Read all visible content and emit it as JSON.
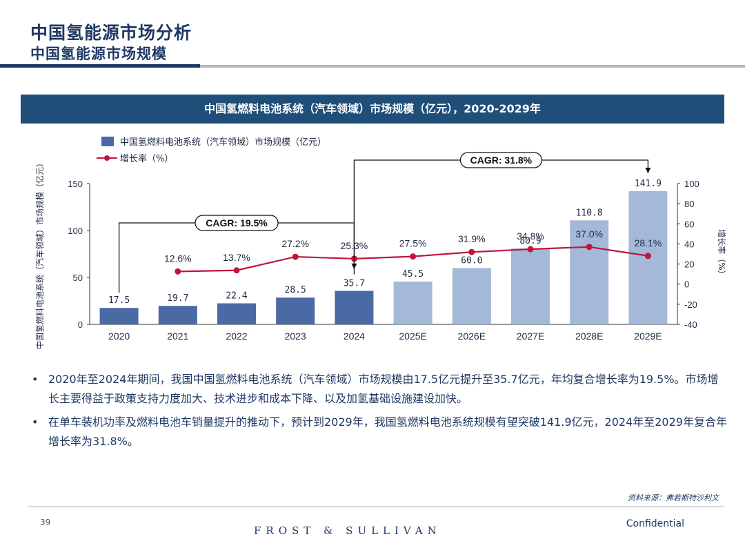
{
  "header": {
    "title": "中国氢能源市场分析",
    "subtitle": "中国氢能源市场规模"
  },
  "chart_banner": "中国氢燃料电池系统（汽车领域）市场规模（亿元），2020-2029年",
  "chart_data": {
    "type": "bar",
    "categories": [
      "2020",
      "2021",
      "2022",
      "2023",
      "2024",
      "2025E",
      "2026E",
      "2027E",
      "2028E",
      "2029E"
    ],
    "series": [
      {
        "name": "中国氢燃料电池系统（汽车领域）市场规模（亿元）",
        "type": "bar",
        "axis": "left",
        "values": [
          17.5,
          19.7,
          22.4,
          28.5,
          35.7,
          45.5,
          60.0,
          80.9,
          110.8,
          141.9
        ],
        "labels": [
          "17.5",
          "19.7",
          "22.4",
          "28.5",
          "35.7",
          "45.5",
          "60.0",
          "80.9",
          "110.8",
          "141.9"
        ],
        "colors": [
          "#4a6aa5",
          "#4a6aa5",
          "#4a6aa5",
          "#4a6aa5",
          "#4a6aa5",
          "#a4b8d8",
          "#a4b8d8",
          "#a4b8d8",
          "#a4b8d8",
          "#a4b8d8"
        ]
      },
      {
        "name": "增长率（%）",
        "type": "line",
        "axis": "right",
        "color": "#c0143c",
        "x": [
          "2021",
          "2022",
          "2023",
          "2024",
          "2025E",
          "2026E",
          "2027E",
          "2028E",
          "2029E"
        ],
        "values": [
          12.6,
          13.7,
          27.2,
          25.3,
          27.5,
          31.9,
          34.8,
          37.0,
          28.1
        ],
        "labels": [
          "12.6%",
          "13.7%",
          "27.2%",
          "25.3%",
          "27.5%",
          "31.9%",
          "34.8%",
          "37.0%",
          "28.1%"
        ]
      }
    ],
    "ylabel": "中国氢燃料电池系统（汽车领域）市场规模（亿元）",
    "y2label": "增长率（%）",
    "ylim": [
      0,
      150
    ],
    "yticks": [
      0,
      50,
      100,
      150
    ],
    "y2lim": [
      -40,
      100
    ],
    "y2ticks": [
      -40,
      -20,
      0,
      20,
      40,
      60,
      80,
      100
    ],
    "legend": "top-left",
    "annotations": [
      {
        "text": "CAGR: 19.5%",
        "from": "2020",
        "to": "2024"
      },
      {
        "text": "CAGR: 31.8%",
        "from": "2024",
        "to": "2029E"
      }
    ]
  },
  "bullets": [
    "2020年至2024年期间，我国中国氢燃料电池系统（汽车领域）市场规模由17.5亿元提升至35.7亿元，年均复合增长率为19.5%。市场增长主要得益于政策支持力度加大、技术进步和成本下降、以及加氢基础设施建设加快。",
    "在单车装机功率及燃料电池车销量提升的推动下，预计到2029年，我国氢燃料电池系统规模有望突破141.9亿元，2024年至2029年复合年增长率为31.8%。"
  ],
  "footer": {
    "source": "资料来源：弗若斯特沙利文",
    "page": "39",
    "brand": "FROST & SULLIVAN",
    "confidential": "Confidential"
  }
}
